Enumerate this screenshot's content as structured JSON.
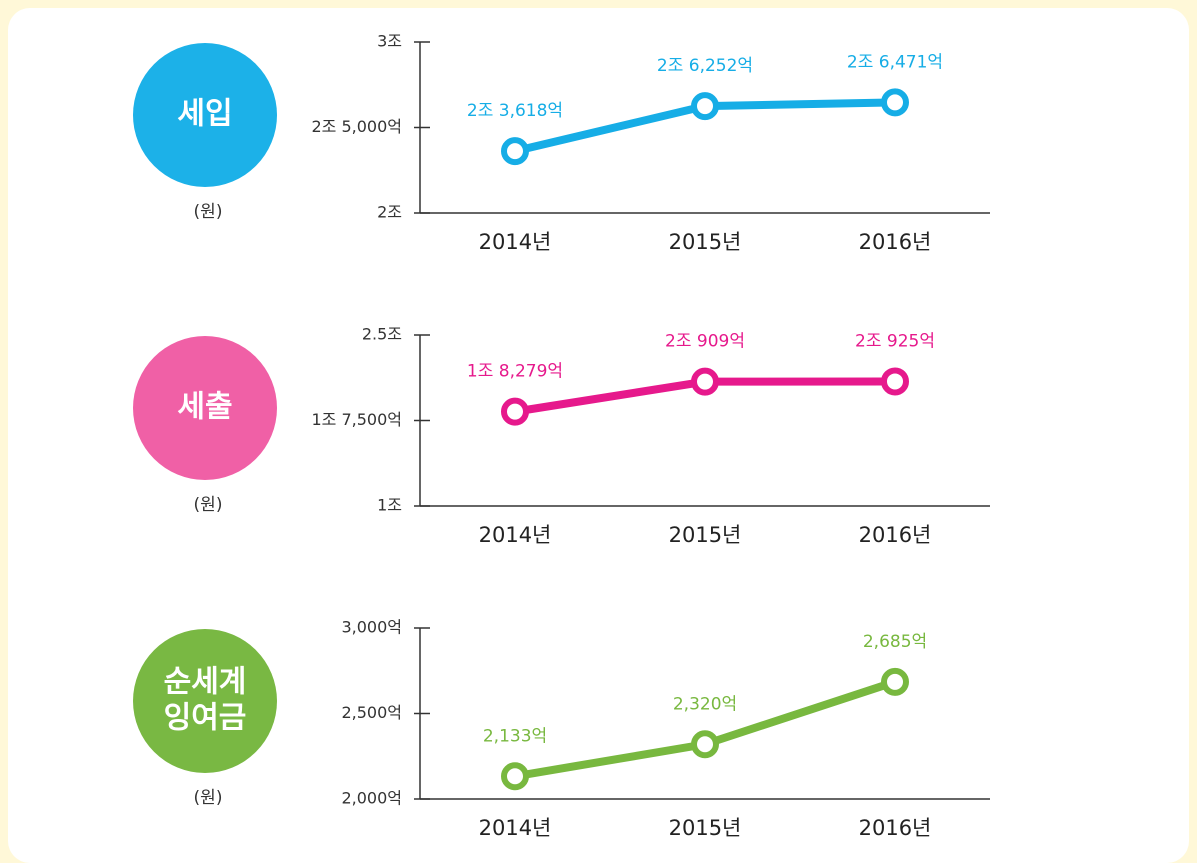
{
  "chart_data": [
    {
      "type": "line",
      "title": [
        "세입"
      ],
      "unit_label": "(원)",
      "color": "#16ade6",
      "categories": [
        "2014년",
        "2015년",
        "2016년"
      ],
      "values": [
        23618,
        26252,
        26471
      ],
      "value_labels": [
        "2조 3,618억",
        "2조 6,252억",
        "2조 6,471억"
      ],
      "ylim": [
        20000,
        30000
      ],
      "yticks": [
        {
          "value": 20000,
          "label": "2조"
        },
        {
          "value": 25000,
          "label": "2조 5,000억"
        },
        {
          "value": 30000,
          "label": "3조"
        }
      ]
    },
    {
      "type": "line",
      "title": [
        "세출"
      ],
      "unit_label": "(원)",
      "color": "#e6198c",
      "categories": [
        "2014년",
        "2015년",
        "2016년"
      ],
      "values": [
        18279,
        20909,
        20925
      ],
      "value_labels": [
        "1조 8,279억",
        "2조 909억",
        "2조 925억"
      ],
      "ylim": [
        10000,
        25000
      ],
      "yticks": [
        {
          "value": 10000,
          "label": "1조"
        },
        {
          "value": 17500,
          "label": "1조 7,500억"
        },
        {
          "value": 25000,
          "label": "2.5조"
        }
      ]
    },
    {
      "type": "line",
      "title": [
        "순세계",
        "잉여금"
      ],
      "unit_label": "(원)",
      "color": "#78b83f",
      "categories": [
        "2014년",
        "2015년",
        "2016년"
      ],
      "values": [
        2133,
        2320,
        2685
      ],
      "value_labels": [
        "2,133억",
        "2,320억",
        "2,685억"
      ],
      "ylim": [
        2000,
        3000
      ],
      "yticks": [
        {
          "value": 2000,
          "label": "2,000억"
        },
        {
          "value": 2500,
          "label": "2,500억"
        },
        {
          "value": 3000,
          "label": "3,000억"
        }
      ]
    }
  ]
}
